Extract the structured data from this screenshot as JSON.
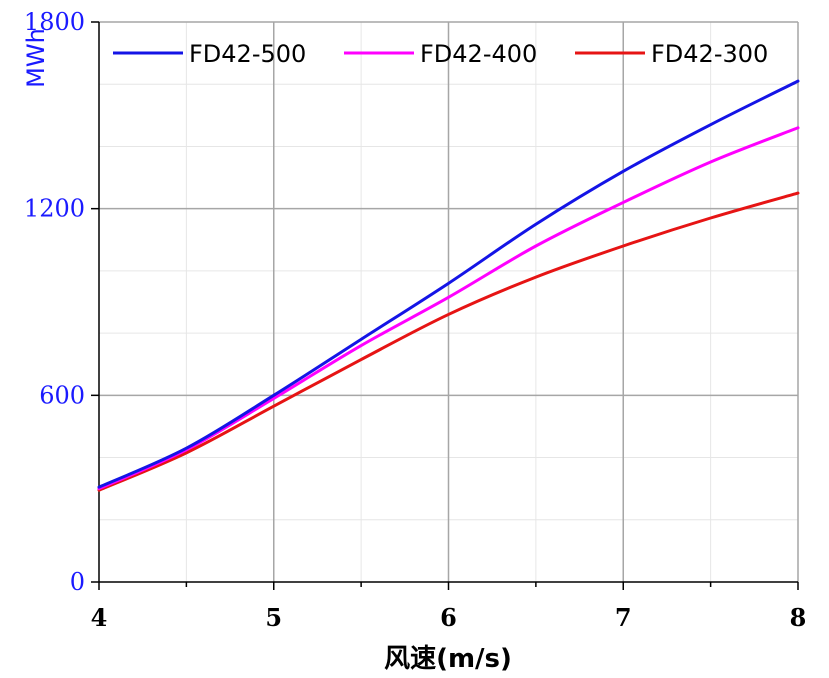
{
  "chart_data": {
    "type": "line",
    "xlabel": "风速(m/s)",
    "ylabel": "MWh",
    "xlim": [
      4,
      8
    ],
    "ylim": [
      0,
      1800
    ],
    "x_ticks": [
      "4",
      "5",
      "6",
      "7",
      "8"
    ],
    "y_ticks": [
      "0",
      "600",
      "1200",
      "1800"
    ],
    "grid": true,
    "legend_position": "top",
    "x": [
      4,
      4.5,
      5,
      5.5,
      6,
      6.5,
      7,
      7.5,
      8
    ],
    "series": [
      {
        "name": "FD42-500",
        "color": "#1414e6",
        "values": [
          305,
          430,
          600,
          780,
          960,
          1150,
          1320,
          1470,
          1610
        ]
      },
      {
        "name": "FD42-400",
        "color": "#ff00ff",
        "values": [
          300,
          425,
          590,
          760,
          915,
          1080,
          1220,
          1350,
          1460
        ]
      },
      {
        "name": "FD42-300",
        "color": "#e61414",
        "values": [
          295,
          415,
          565,
          715,
          860,
          980,
          1080,
          1170,
          1250
        ]
      }
    ]
  }
}
